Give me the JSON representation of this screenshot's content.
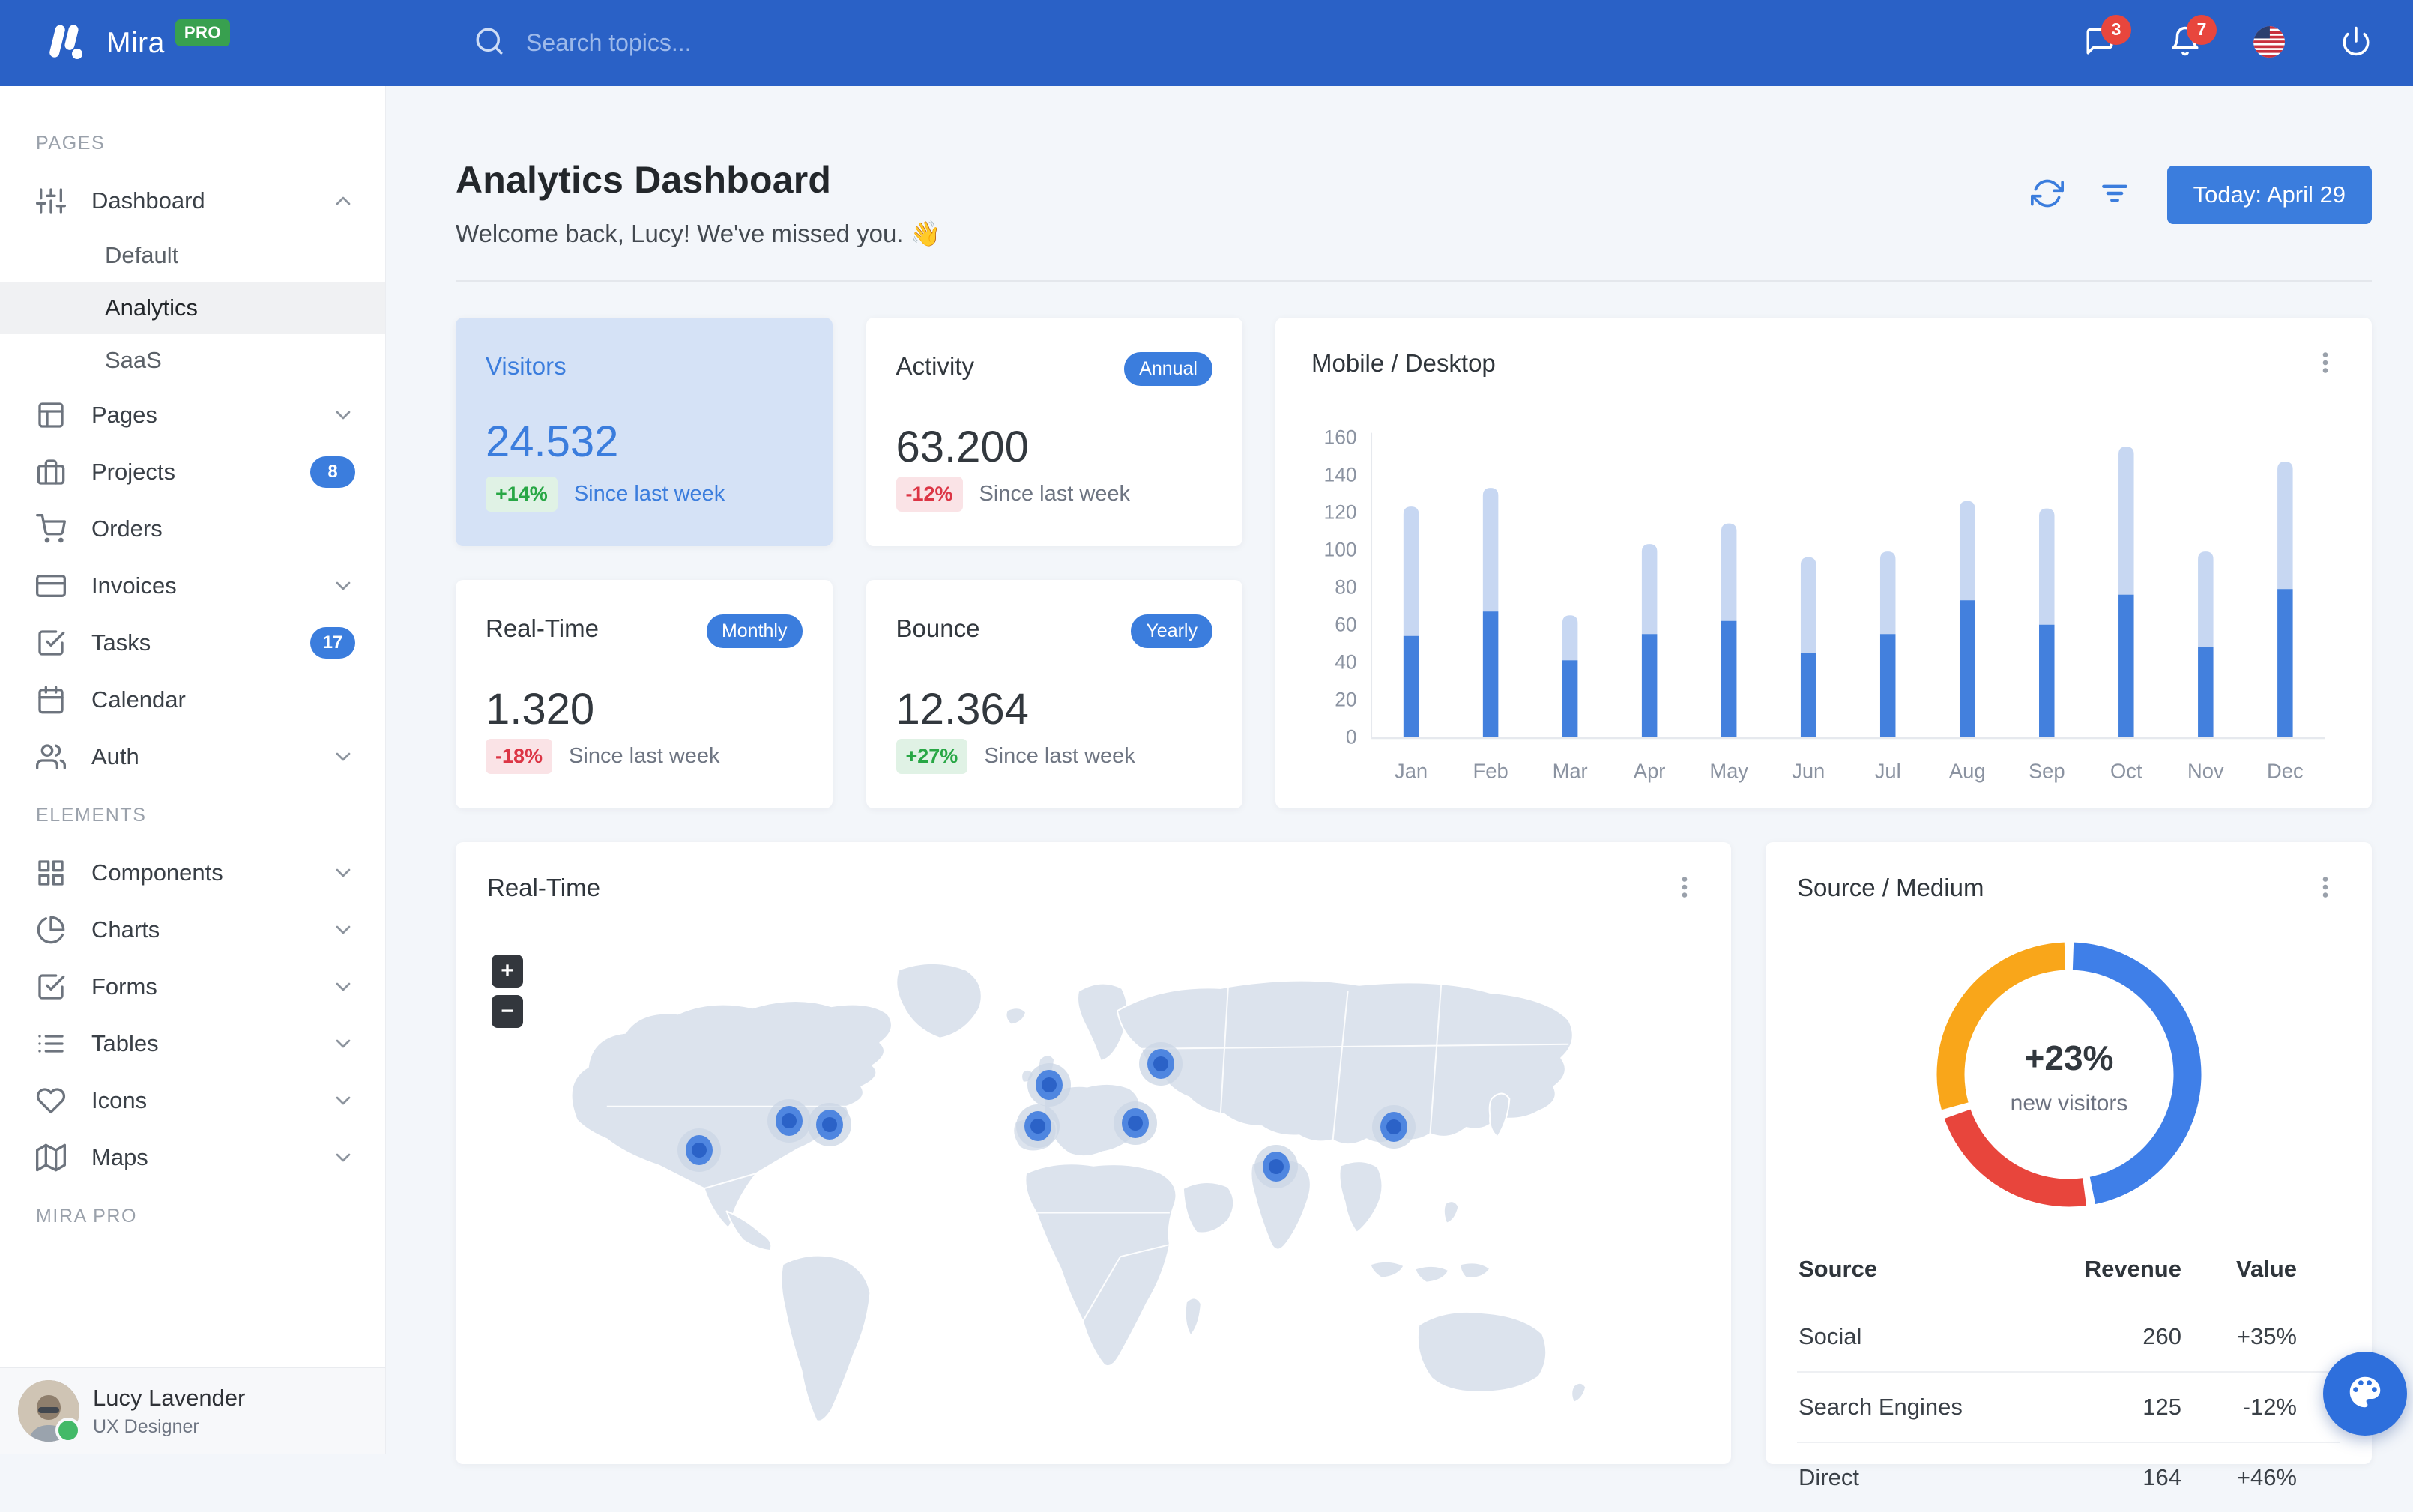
{
  "theme": {
    "primary": "#3b7ddd",
    "navbar": "#2a61c6",
    "danger": "#dc3545",
    "success": "#28a745",
    "warning": "#fcb92c",
    "bar_light": "#c7d7f2",
    "tint_card": "#d5e2f6"
  },
  "navbar": {
    "brand": "Mira",
    "pro": "PRO",
    "search_placeholder": "Search topics...",
    "messages_count": "3",
    "alerts_count": "7"
  },
  "sidebar": {
    "sections": [
      {
        "label": "PAGES",
        "items": [
          {
            "icon": "sliders",
            "label": "Dashboard",
            "chevron": "up",
            "children": [
              {
                "label": "Default",
                "active": false
              },
              {
                "label": "Analytics",
                "active": true
              },
              {
                "label": "SaaS",
                "active": false
              }
            ]
          },
          {
            "icon": "layout",
            "label": "Pages",
            "chevron": "down"
          },
          {
            "icon": "briefcase",
            "label": "Projects",
            "badge": "8"
          },
          {
            "icon": "shopping-cart",
            "label": "Orders"
          },
          {
            "icon": "credit-card",
            "label": "Invoices",
            "chevron": "down"
          },
          {
            "icon": "check-square",
            "label": "Tasks",
            "badge": "17"
          },
          {
            "icon": "calendar",
            "label": "Calendar"
          },
          {
            "icon": "users",
            "label": "Auth",
            "chevron": "down"
          }
        ]
      },
      {
        "label": "ELEMENTS",
        "items": [
          {
            "icon": "grid",
            "label": "Components",
            "chevron": "down"
          },
          {
            "icon": "pie-chart",
            "label": "Charts",
            "chevron": "down"
          },
          {
            "icon": "check-square",
            "label": "Forms",
            "chevron": "down"
          },
          {
            "icon": "list",
            "label": "Tables",
            "chevron": "down"
          },
          {
            "icon": "heart",
            "label": "Icons",
            "chevron": "down"
          },
          {
            "icon": "map",
            "label": "Maps",
            "chevron": "down"
          }
        ]
      },
      {
        "label": "MIRA PRO",
        "items": []
      }
    ],
    "user": {
      "name": "Lucy Lavender",
      "role": "UX Designer",
      "status": "online"
    }
  },
  "header": {
    "title": "Analytics Dashboard",
    "subtitle": "Welcome back, Lucy! We've missed you. 👋",
    "date_button": "Today: April 29"
  },
  "stats": [
    {
      "title": "Visitors",
      "value": "24.532",
      "delta": "+14%",
      "delta_dir": "up",
      "note": "Since last week",
      "highlight": true
    },
    {
      "title": "Activity",
      "badge": "Annual",
      "value": "63.200",
      "delta": "-12%",
      "delta_dir": "down",
      "note": "Since last week",
      "highlight": false
    },
    {
      "title": "Real-Time",
      "badge": "Monthly",
      "value": "1.320",
      "delta": "-18%",
      "delta_dir": "down",
      "note": "Since last week",
      "highlight": false
    },
    {
      "title": "Bounce",
      "badge": "Yearly",
      "value": "12.364",
      "delta": "+27%",
      "delta_dir": "up",
      "note": "Since last week",
      "highlight": false
    }
  ],
  "chart_data": [
    {
      "type": "bar",
      "title": "Mobile / Desktop",
      "stacked": true,
      "legend_position": "none",
      "grid": false,
      "categories": [
        "Jan",
        "Feb",
        "Mar",
        "Apr",
        "May",
        "Jun",
        "Jul",
        "Aug",
        "Sep",
        "Oct",
        "Nov",
        "Dec"
      ],
      "series": [
        {
          "name": "Mobile",
          "color": "#4380dd",
          "position": "bottom",
          "values": [
            54,
            67,
            41,
            55,
            62,
            45,
            55,
            73,
            60,
            76,
            48,
            79
          ]
        },
        {
          "name": "Desktop",
          "color": "#c7d7f2",
          "position": "top",
          "values": [
            69,
            66,
            24,
            48,
            52,
            51,
            44,
            53,
            62,
            79,
            51,
            68
          ]
        }
      ],
      "ylim": [
        0,
        160
      ],
      "yticks": [
        0,
        20,
        40,
        60,
        80,
        100,
        120,
        140,
        160
      ]
    },
    {
      "type": "pie",
      "title": "Source / Medium",
      "donut": true,
      "center_label": "+23%",
      "center_sub": "new visitors",
      "slices": [
        {
          "label": "Social",
          "value": 260,
          "color": "#3f7fe8"
        },
        {
          "label": "Search Engines",
          "value": 125,
          "color": "#e8453c"
        },
        {
          "label": "Direct",
          "value": 164,
          "color": "#f9a61a"
        }
      ]
    }
  ],
  "map": {
    "title": "Real-Time",
    "zoom_in_label": "+",
    "zoom_out_label": "−",
    "markers": [
      {
        "city": "San Francisco",
        "x": 17.9,
        "y": 43.6
      },
      {
        "city": "Chicago",
        "x": 25.2,
        "y": 37.7
      },
      {
        "city": "New York",
        "x": 28.5,
        "y": 38.4
      },
      {
        "city": "London",
        "x": 46.4,
        "y": 30.2
      },
      {
        "city": "Madrid",
        "x": 45.5,
        "y": 38.8
      },
      {
        "city": "Istanbul",
        "x": 53.4,
        "y": 38.1
      },
      {
        "city": "Moscow",
        "x": 55.5,
        "y": 25.9
      },
      {
        "city": "New Delhi",
        "x": 64.9,
        "y": 47.0
      },
      {
        "city": "Beijing",
        "x": 74.5,
        "y": 38.9
      }
    ]
  },
  "source_table": {
    "headers": [
      "Source",
      "Revenue",
      "Value"
    ],
    "rows": [
      {
        "source": "Social",
        "revenue": "260",
        "value": "+35%",
        "dir": "up"
      },
      {
        "source": "Search Engines",
        "revenue": "125",
        "value": "-12%",
        "dir": "down"
      },
      {
        "source": "Direct",
        "revenue": "164",
        "value": "+46%",
        "dir": "up"
      }
    ]
  }
}
